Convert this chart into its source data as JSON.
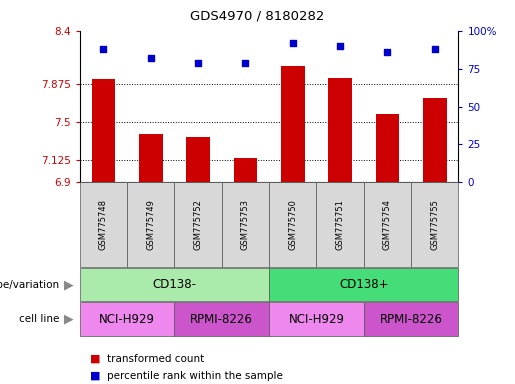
{
  "title": "GDS4970 / 8180282",
  "samples": [
    "GSM775748",
    "GSM775749",
    "GSM775752",
    "GSM775753",
    "GSM775750",
    "GSM775751",
    "GSM775754",
    "GSM775755"
  ],
  "bar_values": [
    7.92,
    7.38,
    7.35,
    7.14,
    8.05,
    7.93,
    7.58,
    7.73
  ],
  "scatter_values": [
    88,
    82,
    79,
    79,
    92,
    90,
    86,
    88
  ],
  "ylim_left": [
    6.9,
    8.4
  ],
  "ylim_right": [
    0,
    100
  ],
  "yticks_left": [
    6.9,
    7.125,
    7.5,
    7.875,
    8.4
  ],
  "ytick_labels_left": [
    "6.9",
    "7.125",
    "7.5",
    "7.875",
    "8.4"
  ],
  "yticks_right": [
    0,
    25,
    50,
    75,
    100
  ],
  "ytick_labels_right": [
    "0",
    "25",
    "50",
    "75",
    "100%"
  ],
  "hlines": [
    7.875,
    7.5,
    7.125
  ],
  "bar_color": "#cc0000",
  "scatter_color": "#0000cc",
  "bar_width": 0.5,
  "genotype_groups": [
    {
      "label": "CD138-",
      "start": 0,
      "end": 4,
      "color": "#aaeaaa"
    },
    {
      "label": "CD138+",
      "start": 4,
      "end": 8,
      "color": "#44dd77"
    }
  ],
  "cell_line_groups": [
    {
      "label": "NCI-H929",
      "start": 0,
      "end": 2,
      "color": "#ee88ee"
    },
    {
      "label": "RPMI-8226",
      "start": 2,
      "end": 4,
      "color": "#cc55cc"
    },
    {
      "label": "NCI-H929",
      "start": 4,
      "end": 6,
      "color": "#ee88ee"
    },
    {
      "label": "RPMI-8226",
      "start": 6,
      "end": 8,
      "color": "#cc55cc"
    }
  ],
  "legend_items": [
    {
      "label": "transformed count",
      "color": "#cc0000"
    },
    {
      "label": "percentile rank within the sample",
      "color": "#0000cc"
    }
  ],
  "left_label_color": "#cc0000",
  "right_label_color": "#0000cc",
  "annotation_row1_label": "genotype/variation",
  "annotation_row2_label": "cell line"
}
